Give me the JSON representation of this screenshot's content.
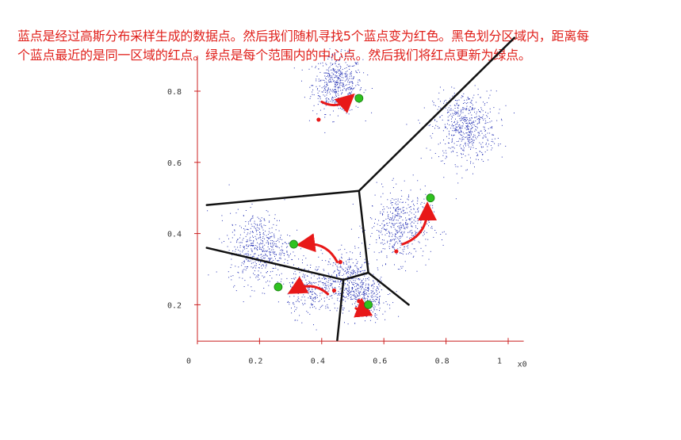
{
  "caption": {
    "line1": "蓝点是经过高斯分布采样生成的数据点。然后我们随机寻找5个蓝点变为红色。黑色划分区域内，距离每",
    "line2": "个蓝点最近的是同一区域的红点。绿点是每个范围内的中心点。然后我们将红点更新为绿点。"
  },
  "chart_data": {
    "type": "scatter",
    "xlim": [
      0,
      1.05
    ],
    "ylim": [
      0.1,
      0.9
    ],
    "x_ticks": [
      "0",
      "0.2",
      "0.4",
      "0.6",
      "0.8",
      "1"
    ],
    "y_ticks": [
      "0.2",
      "0.4",
      "0.6",
      "0.8"
    ],
    "xlabel": "x0",
    "colors": {
      "data": "#2632b5",
      "axis": "#cc2222",
      "seed": "#e81818",
      "centroid": "#2ec21f",
      "boundary": "#111111"
    },
    "clusters": [
      {
        "center": [
          0.45,
          0.82
        ],
        "spread": 0.04,
        "count": 500
      },
      {
        "center": [
          0.86,
          0.7
        ],
        "spread": 0.05,
        "count": 600
      },
      {
        "center": [
          0.65,
          0.42
        ],
        "spread": 0.05,
        "count": 500
      },
      {
        "center": [
          0.2,
          0.36
        ],
        "spread": 0.05,
        "count": 550
      },
      {
        "center": [
          0.48,
          0.27
        ],
        "spread": 0.04,
        "count": 450
      },
      {
        "center": [
          0.36,
          0.24
        ],
        "spread": 0.035,
        "count": 250
      },
      {
        "center": [
          0.55,
          0.22
        ],
        "spread": 0.03,
        "count": 200
      }
    ],
    "red_points": [
      [
        0.39,
        0.72
      ],
      [
        0.64,
        0.35
      ],
      [
        0.46,
        0.32
      ],
      [
        0.44,
        0.24
      ],
      [
        0.52,
        0.21
      ]
    ],
    "green_points": [
      [
        0.52,
        0.78
      ],
      [
        0.75,
        0.5
      ],
      [
        0.31,
        0.37
      ],
      [
        0.26,
        0.25
      ],
      [
        0.55,
        0.2
      ]
    ],
    "voronoi_vertices": {
      "v1": [
        0.52,
        0.52
      ],
      "v2": [
        0.55,
        0.29
      ],
      "v3": [
        0.47,
        0.27
      ]
    },
    "voronoi_edges": [
      [
        "v1",
        [
          1.02,
          0.95
        ]
      ],
      [
        "v1",
        [
          0.03,
          0.48
        ]
      ],
      [
        "v1",
        "v2"
      ],
      [
        "v2",
        "v3"
      ],
      [
        "v2",
        [
          0.68,
          0.2
        ]
      ],
      [
        "v3",
        [
          0.03,
          0.36
        ]
      ],
      [
        "v3",
        [
          0.45,
          0.1
        ]
      ]
    ],
    "arrows": [
      {
        "from": [
          0.4,
          0.77
        ],
        "to": [
          0.49,
          0.78
        ]
      },
      {
        "from": [
          0.66,
          0.37
        ],
        "to": [
          0.74,
          0.47
        ]
      },
      {
        "from": [
          0.45,
          0.32
        ],
        "to": [
          0.34,
          0.37
        ]
      },
      {
        "from": [
          0.42,
          0.23
        ],
        "to": [
          0.31,
          0.24
        ]
      },
      {
        "from": [
          0.51,
          0.19
        ],
        "to": [
          0.53,
          0.2
        ]
      }
    ]
  }
}
